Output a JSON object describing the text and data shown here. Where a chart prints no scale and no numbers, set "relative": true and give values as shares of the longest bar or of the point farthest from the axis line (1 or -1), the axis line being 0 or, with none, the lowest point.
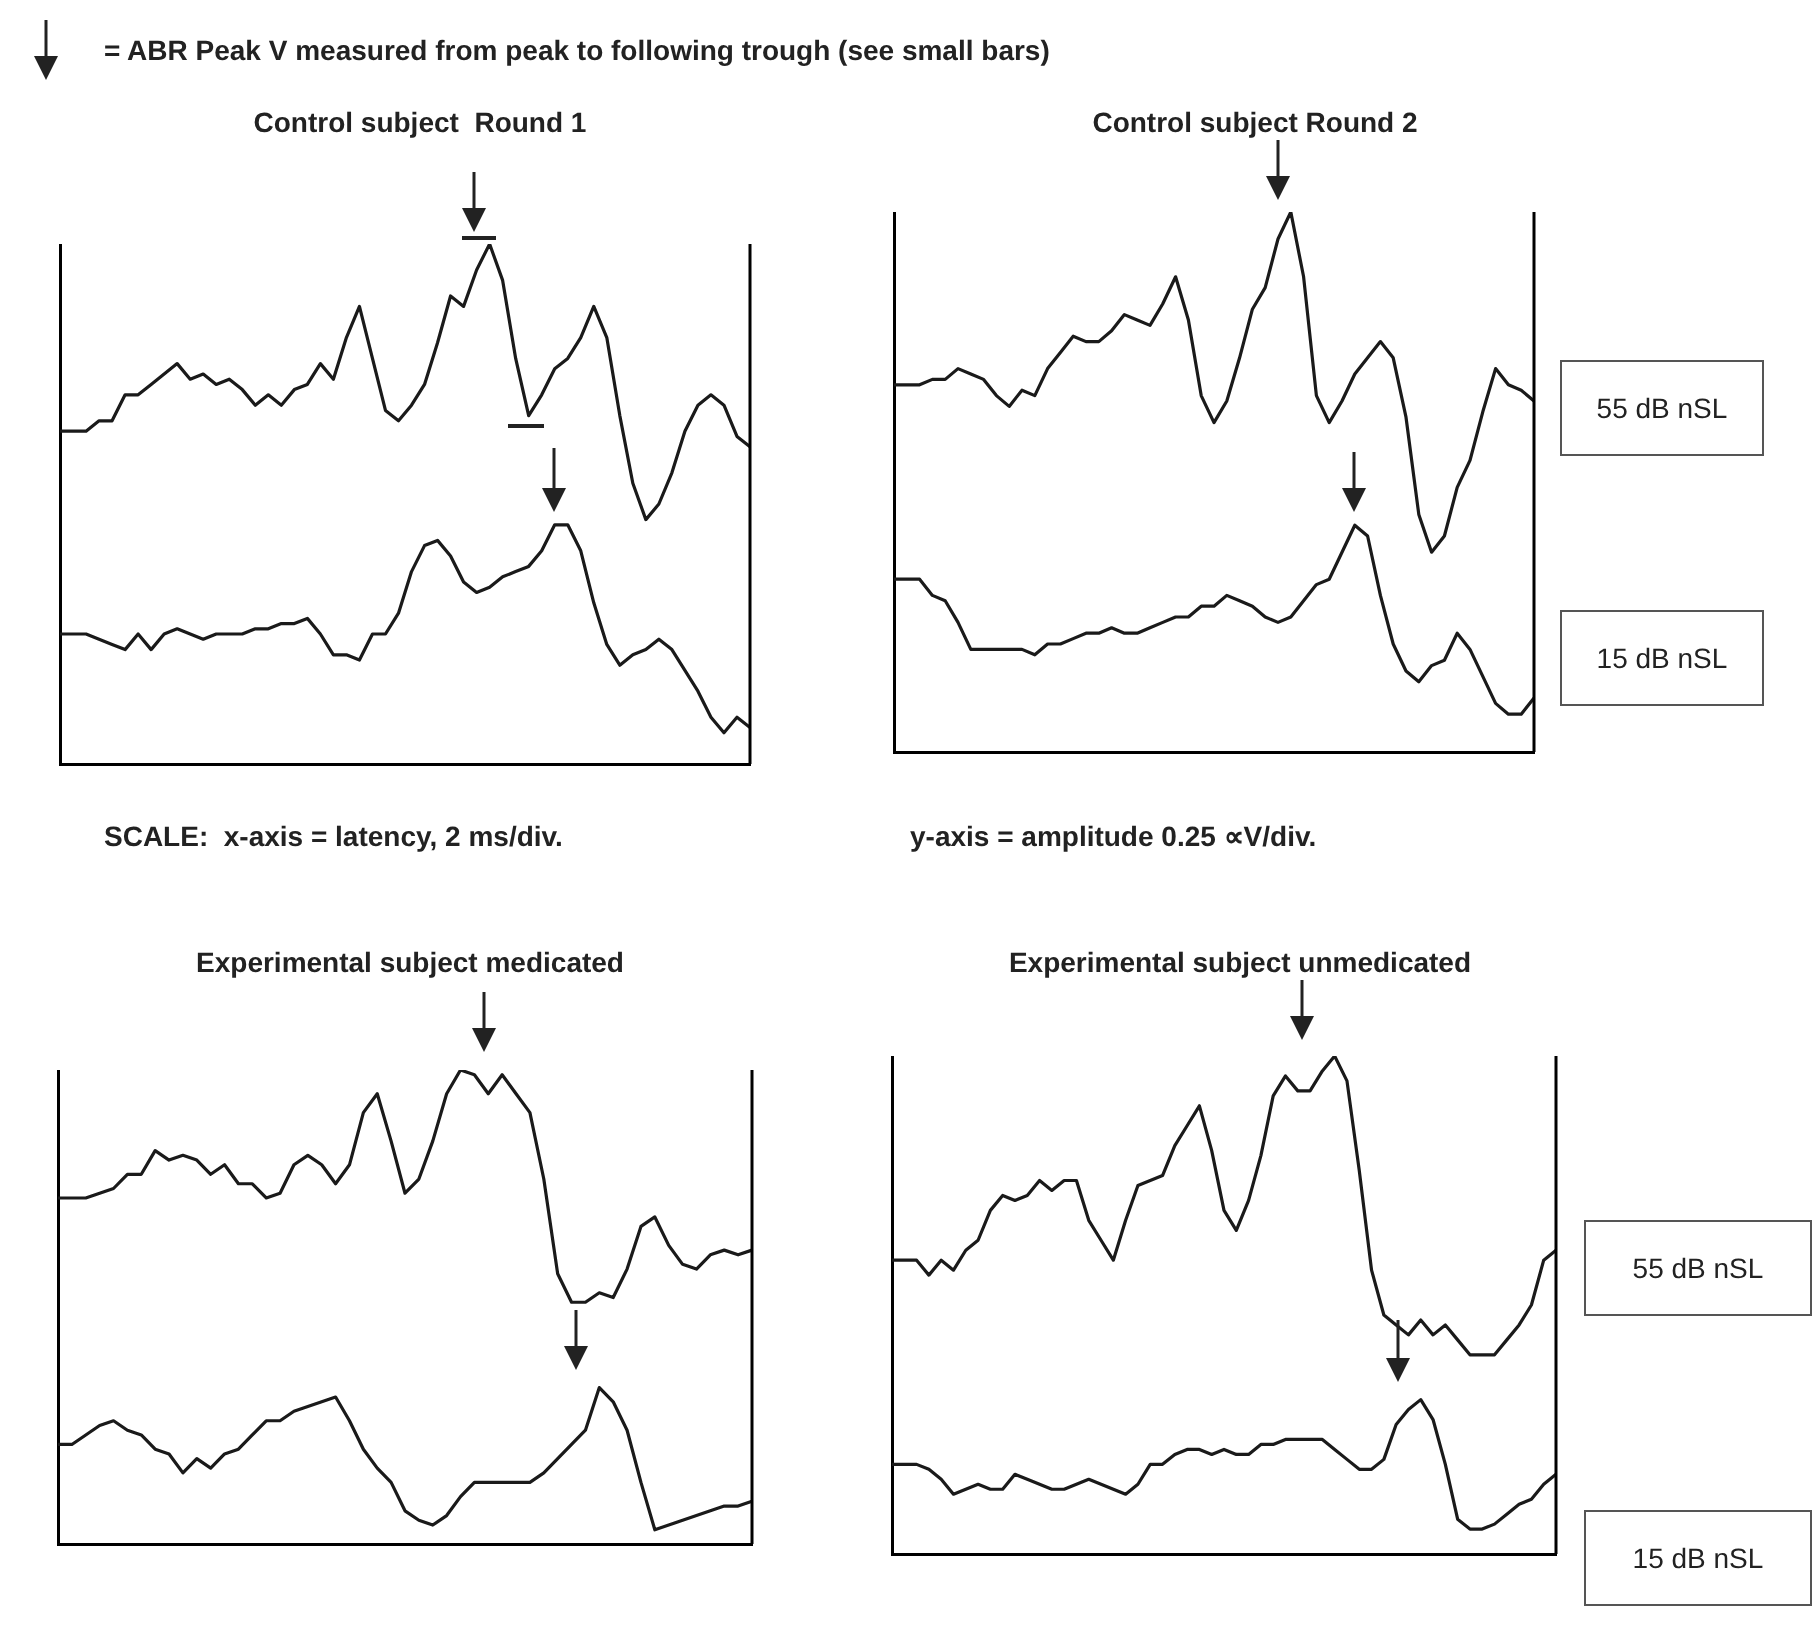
{
  "chart_data": [
    {
      "type": "line",
      "title": "Control subject  Round 1",
      "relative": true,
      "annotations": [
        "= ABR Peak V measured from peak to following trough (see small bars)",
        "SCALE:  x-axis = latency, 2 ms/div."
      ],
      "categories": [
        null,
        null,
        null,
        null,
        null,
        null,
        null,
        null,
        null,
        null,
        null,
        null,
        null,
        null,
        null,
        null,
        null,
        null,
        null,
        null,
        null,
        null,
        null,
        null,
        null,
        null,
        null,
        null,
        null,
        null,
        null,
        null,
        null,
        null,
        null,
        null,
        null,
        null,
        null,
        null,
        null,
        null,
        null,
        null,
        null,
        null,
        null,
        null,
        null,
        null,
        null,
        null,
        null,
        null
      ],
      "series": [
        {
          "color": "#1a1a1a",
          "values": [
            0.64,
            0.64,
            0.64,
            0.66,
            0.66,
            0.71,
            0.71,
            0.73,
            0.75,
            0.77,
            0.74,
            0.75,
            0.73,
            0.74,
            0.72,
            0.69,
            0.71,
            0.69,
            0.72,
            0.73,
            0.77,
            0.74,
            0.82,
            0.88,
            0.78,
            0.68,
            0.66,
            0.69,
            0.73,
            0.81,
            0.9,
            0.88,
            0.95,
            1,
            0.93,
            0.78,
            0.67,
            0.71,
            0.76,
            0.78,
            0.82,
            0.88,
            0.82,
            0.67,
            0.54,
            0.47,
            0.5,
            0.56,
            0.64,
            0.69,
            0.71,
            0.69,
            0.63,
            0.61
          ]
        },
        {
          "color": "#1a1a1a",
          "values": [
            0.25,
            0.25,
            0.25,
            0.24,
            0.23,
            0.22,
            0.25,
            0.22,
            0.25,
            0.26,
            0.25,
            0.24,
            0.25,
            0.25,
            0.25,
            0.26,
            0.26,
            0.27,
            0.27,
            0.28,
            0.25,
            0.21,
            0.21,
            0.2,
            0.25,
            0.25,
            0.29,
            0.37,
            0.42,
            0.43,
            0.4,
            0.35,
            0.33,
            0.34,
            0.36,
            0.37,
            0.38,
            0.41,
            0.46,
            0.46,
            0.41,
            0.31,
            0.23,
            0.19,
            0.21,
            0.22,
            0.24,
            0.22,
            0.18,
            0.14,
            0.09,
            0.06,
            0.09,
            0.07
          ]
        }
      ]
    },
    {
      "type": "line",
      "title": "Control subject Round 2",
      "relative": true,
      "annotations": [
        "y-axis = amplitude 0.25 ∝V/div."
      ],
      "categories": [
        null,
        null,
        null,
        null,
        null,
        null,
        null,
        null,
        null,
        null,
        null,
        null,
        null,
        null,
        null,
        null,
        null,
        null,
        null,
        null,
        null,
        null,
        null,
        null,
        null,
        null,
        null,
        null,
        null,
        null,
        null,
        null,
        null,
        null,
        null,
        null,
        null,
        null,
        null,
        null,
        null,
        null,
        null,
        null,
        null,
        null,
        null,
        null,
        null,
        null,
        null
      ],
      "series": [
        {
          "name": "55 dB nSL",
          "color": "#1a1a1a",
          "values": [
            0.68,
            0.68,
            0.68,
            0.69,
            0.69,
            0.71,
            0.7,
            0.69,
            0.66,
            0.64,
            0.67,
            0.66,
            0.71,
            0.74,
            0.77,
            0.76,
            0.76,
            0.78,
            0.81,
            0.8,
            0.79,
            0.83,
            0.88,
            0.8,
            0.66,
            0.61,
            0.65,
            0.73,
            0.82,
            0.86,
            0.95,
            1,
            0.88,
            0.66,
            0.61,
            0.65,
            0.7,
            0.73,
            0.76,
            0.73,
            0.62,
            0.44,
            0.37,
            0.4,
            0.49,
            0.54,
            0.63,
            0.71,
            0.68,
            0.67,
            0.65
          ]
        },
        {
          "name": "15 dB nSL",
          "color": "#1a1a1a",
          "values": [
            0.32,
            0.32,
            0.32,
            0.29,
            0.28,
            0.24,
            0.19,
            0.19,
            0.19,
            0.19,
            0.19,
            0.18,
            0.2,
            0.2,
            0.21,
            0.22,
            0.22,
            0.23,
            0.22,
            0.22,
            0.23,
            0.24,
            0.25,
            0.25,
            0.27,
            0.27,
            0.29,
            0.28,
            0.27,
            0.25,
            0.24,
            0.25,
            0.28,
            0.31,
            0.32,
            0.37,
            0.42,
            0.4,
            0.29,
            0.2,
            0.15,
            0.13,
            0.16,
            0.17,
            0.22,
            0.19,
            0.14,
            0.09,
            0.07,
            0.07,
            0.1
          ]
        }
      ]
    },
    {
      "type": "line",
      "title": "Experimental subject medicated",
      "relative": true,
      "categories": [
        null,
        null,
        null,
        null,
        null,
        null,
        null,
        null,
        null,
        null,
        null,
        null,
        null,
        null,
        null,
        null,
        null,
        null,
        null,
        null,
        null,
        null,
        null,
        null,
        null,
        null,
        null,
        null,
        null,
        null,
        null,
        null,
        null,
        null,
        null,
        null,
        null,
        null,
        null,
        null,
        null,
        null,
        null,
        null,
        null,
        null,
        null,
        null,
        null,
        null,
        null
      ],
      "series": [
        {
          "color": "#1a1a1a",
          "values": [
            0.73,
            0.73,
            0.73,
            0.74,
            0.75,
            0.78,
            0.78,
            0.83,
            0.81,
            0.82,
            0.81,
            0.78,
            0.8,
            0.76,
            0.76,
            0.73,
            0.74,
            0.8,
            0.82,
            0.8,
            0.76,
            0.8,
            0.91,
            0.95,
            0.85,
            0.74,
            0.77,
            0.85,
            0.95,
            1,
            0.99,
            0.95,
            0.99,
            0.95,
            0.91,
            0.77,
            0.57,
            0.51,
            0.51,
            0.53,
            0.52,
            0.58,
            0.67,
            0.69,
            0.63,
            0.59,
            0.58,
            0.61,
            0.62,
            0.61,
            0.62
          ]
        },
        {
          "color": "#1a1a1a",
          "values": [
            0.21,
            0.21,
            0.23,
            0.25,
            0.26,
            0.24,
            0.23,
            0.2,
            0.19,
            0.15,
            0.18,
            0.16,
            0.19,
            0.2,
            0.23,
            0.26,
            0.26,
            0.28,
            0.29,
            0.3,
            0.31,
            0.26,
            0.2,
            0.16,
            0.13,
            0.07,
            0.05,
            0.04,
            0.06,
            0.1,
            0.13,
            0.13,
            0.13,
            0.13,
            0.13,
            0.15,
            0.18,
            0.21,
            0.24,
            0.33,
            0.3,
            0.24,
            0.13,
            0.03,
            0.04,
            0.05,
            0.06,
            0.07,
            0.08,
            0.08,
            0.09
          ]
        }
      ]
    },
    {
      "type": "line",
      "title": "Experimental subject unmedicated",
      "relative": true,
      "categories": [
        null,
        null,
        null,
        null,
        null,
        null,
        null,
        null,
        null,
        null,
        null,
        null,
        null,
        null,
        null,
        null,
        null,
        null,
        null,
        null,
        null,
        null,
        null,
        null,
        null,
        null,
        null,
        null,
        null,
        null,
        null,
        null,
        null,
        null,
        null,
        null,
        null,
        null,
        null,
        null,
        null,
        null,
        null,
        null,
        null,
        null,
        null,
        null,
        null,
        null,
        null,
        null,
        null,
        null,
        null
      ],
      "series": [
        {
          "name": "55 dB nSL",
          "color": "#1a1a1a",
          "values": [
            0.59,
            0.59,
            0.59,
            0.56,
            0.59,
            0.57,
            0.61,
            0.63,
            0.69,
            0.72,
            0.71,
            0.72,
            0.75,
            0.73,
            0.75,
            0.75,
            0.67,
            0.63,
            0.59,
            0.67,
            0.74,
            0.75,
            0.76,
            0.82,
            0.86,
            0.9,
            0.81,
            0.69,
            0.65,
            0.71,
            0.8,
            0.92,
            0.96,
            0.93,
            0.93,
            0.97,
            1,
            0.95,
            0.77,
            0.57,
            0.48,
            0.46,
            0.44,
            0.47,
            0.44,
            0.46,
            0.43,
            0.4,
            0.4,
            0.4,
            0.43,
            0.46,
            0.5,
            0.59,
            0.61
          ]
        },
        {
          "name": "15 dB nSL",
          "color": "#1a1a1a",
          "values": [
            0.18,
            0.18,
            0.18,
            0.17,
            0.15,
            0.12,
            0.13,
            0.14,
            0.13,
            0.13,
            0.16,
            0.15,
            0.14,
            0.13,
            0.13,
            0.14,
            0.15,
            0.14,
            0.13,
            0.12,
            0.14,
            0.18,
            0.18,
            0.2,
            0.21,
            0.21,
            0.2,
            0.21,
            0.2,
            0.2,
            0.22,
            0.22,
            0.23,
            0.23,
            0.23,
            0.23,
            0.21,
            0.19,
            0.17,
            0.17,
            0.19,
            0.26,
            0.29,
            0.31,
            0.27,
            0.18,
            0.07,
            0.05,
            0.05,
            0.06,
            0.08,
            0.1,
            0.11,
            0.14,
            0.16
          ]
        }
      ]
    }
  ]
}
